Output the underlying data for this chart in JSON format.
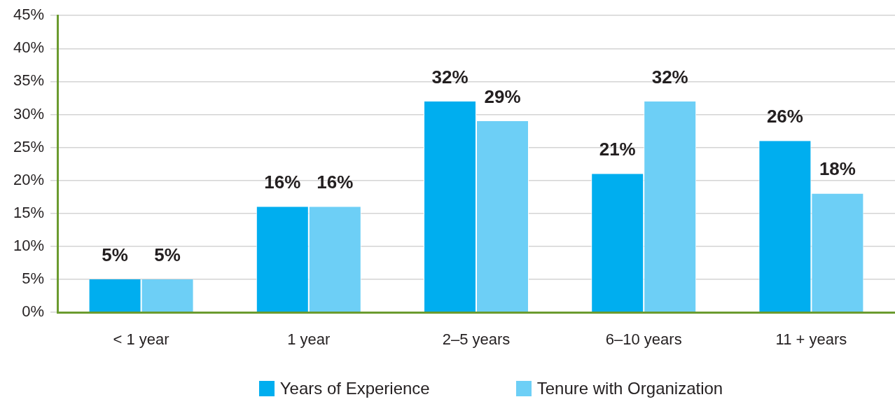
{
  "chart_data": {
    "type": "bar",
    "categories": [
      "< 1 year",
      "1 year",
      "2–5 years",
      "6–10 years",
      "11 + years"
    ],
    "series": [
      {
        "name": "Years of Experience",
        "color": "#00aeef",
        "values": [
          5,
          16,
          32,
          21,
          26
        ],
        "value_labels": [
          "5%",
          "16%",
          "32%",
          "21%",
          "26%"
        ]
      },
      {
        "name": "Tenure with Organization",
        "color": "#6dcff6",
        "values": [
          5,
          16,
          29,
          32,
          18
        ],
        "value_labels": [
          "5%",
          "16%",
          "29%",
          "32%",
          "18%"
        ]
      }
    ],
    "ylim": [
      0,
      45
    ],
    "yticks": [
      {
        "value": 0,
        "label": "0%"
      },
      {
        "value": 5,
        "label": "5%"
      },
      {
        "value": 10,
        "label": "10%"
      },
      {
        "value": 15,
        "label": "15%"
      },
      {
        "value": 20,
        "label": "20%"
      },
      {
        "value": 25,
        "label": "25%"
      },
      {
        "value": 30,
        "label": "30%"
      },
      {
        "value": 35,
        "label": "35%"
      },
      {
        "value": 40,
        "label": "40%"
      },
      {
        "value": 45,
        "label": "45%"
      }
    ],
    "grid": "y",
    "legend": "bottom"
  }
}
